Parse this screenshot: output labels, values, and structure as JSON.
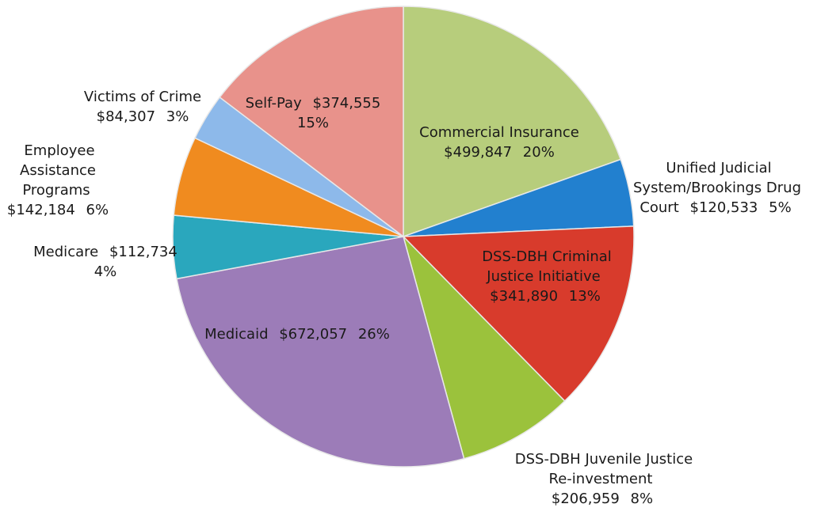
{
  "chart_data": {
    "type": "pie",
    "categories": [
      "Commercial Insurance",
      "Unified Judicial System/Brookings Drug Court",
      "DSS-DBH Criminal Justice Initiative",
      "DSS-DBH Juvenile Justice Re-investment",
      "Medicaid",
      "Medicare",
      "Employee Assistance Programs",
      "Victims of Crime",
      "Self-Pay"
    ],
    "values": [
      499847,
      120533,
      341890,
      206959,
      672057,
      112734,
      142184,
      84307,
      374555
    ],
    "value_labels": [
      "$499,847",
      "$120,533",
      "$341,890",
      "$206,959",
      "$672,057",
      "$112,734",
      "$142,184",
      "$84,307",
      "$374,555"
    ],
    "percents": [
      20,
      5,
      13,
      8,
      26,
      4,
      6,
      3,
      15
    ],
    "percent_labels": [
      "20%",
      "5%",
      "13%",
      "8%",
      "26%",
      "4%",
      "6%",
      "3%",
      "15%"
    ],
    "colors": [
      "#b7cd7c",
      "#2280cf",
      "#d83b2c",
      "#9bc23c",
      "#9c7cb8",
      "#2aa7bd",
      "#f08b1f",
      "#8db9ea",
      "#e8928b"
    ]
  }
}
